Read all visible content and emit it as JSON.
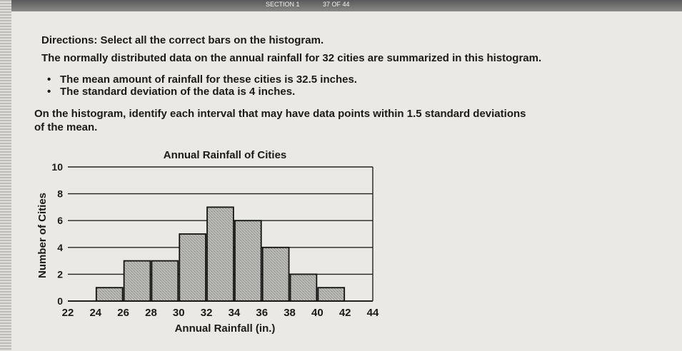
{
  "header": {
    "section": "SECTION 1",
    "page": "37 OF 44"
  },
  "directions": {
    "label": "Directions:",
    "instruction": "Select all the correct bars on the histogram."
  },
  "intro": "The normally distributed data on the annual rainfall for 32 cities are summarized in this histogram.",
  "bullets": [
    "The mean amount of rainfall for these cities is 32.5 inches.",
    "The standard deviation of the data is 4 inches."
  ],
  "question": {
    "line1": "On the histogram, identify each interval that may have data points within 1.5 standard deviations",
    "line2": "of the mean."
  },
  "chart_data": {
    "type": "bar",
    "title": "Annual Rainfall of Cities",
    "xlabel": "Annual Rainfall (in.)",
    "ylabel": "Number of Cities",
    "bins": [
      {
        "start": 24,
        "end": 26,
        "value": 1
      },
      {
        "start": 26,
        "end": 28,
        "value": 3
      },
      {
        "start": 28,
        "end": 30,
        "value": 3
      },
      {
        "start": 30,
        "end": 32,
        "value": 5
      },
      {
        "start": 32,
        "end": 34,
        "value": 7
      },
      {
        "start": 34,
        "end": 36,
        "value": 6
      },
      {
        "start": 36,
        "end": 38,
        "value": 4
      },
      {
        "start": 38,
        "end": 40,
        "value": 2
      },
      {
        "start": 40,
        "end": 42,
        "value": 1
      }
    ],
    "x_ticks": [
      "22",
      "24",
      "26",
      "28",
      "30",
      "32",
      "34",
      "36",
      "38",
      "40",
      "42",
      "44"
    ],
    "y_ticks": [
      "0",
      "2",
      "4",
      "6",
      "8",
      "10"
    ],
    "xlim": [
      22,
      44
    ],
    "ylim": [
      0,
      10
    ],
    "grid": true,
    "bar_color": "#a8a8a5"
  }
}
